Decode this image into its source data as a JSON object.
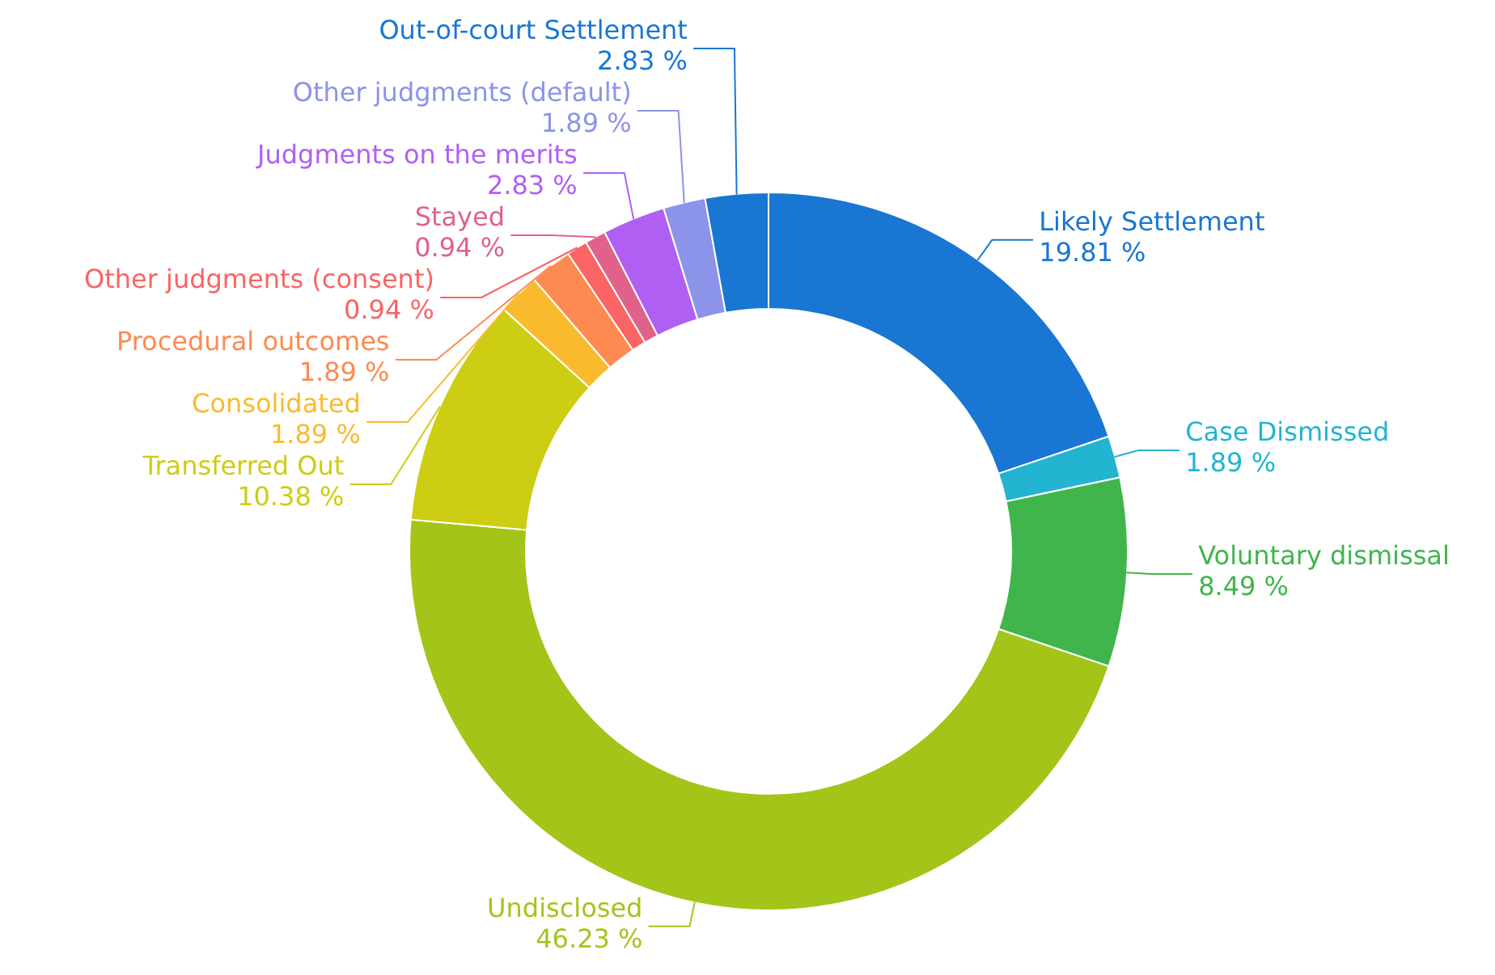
{
  "chart_data": {
    "type": "donut",
    "categories": [
      "Likely Settlement",
      "Case Dismissed",
      "Voluntary dismissal",
      "Undisclosed",
      "Transferred Out",
      "Consolidated",
      "Procedural outcomes",
      "Other judgments (consent)",
      "Stayed",
      "Judgments on the merits",
      "Other judgments (default)",
      "Out-of-court Settlement"
    ],
    "values": [
      19.81,
      1.89,
      8.49,
      46.23,
      10.38,
      1.89,
      1.89,
      0.94,
      0.94,
      2.83,
      1.89,
      2.83
    ],
    "colors": [
      "#1976d2",
      "#22b4d0",
      "#40b54b",
      "#a3c519",
      "#cdcd14",
      "#f9bb2d",
      "#fd8a50",
      "#fa6464",
      "#e0628a",
      "#b05ff3",
      "#8b94e8",
      "#1976d2"
    ],
    "value_labels": [
      "19.81 %",
      "1.89 %",
      "8.49 %",
      "46.23 %",
      "10.38 %",
      "1.89 %",
      "1.89 %",
      "0.94 %",
      "0.94 %",
      "2.83 %",
      "1.89 %",
      "2.83 %"
    ]
  }
}
